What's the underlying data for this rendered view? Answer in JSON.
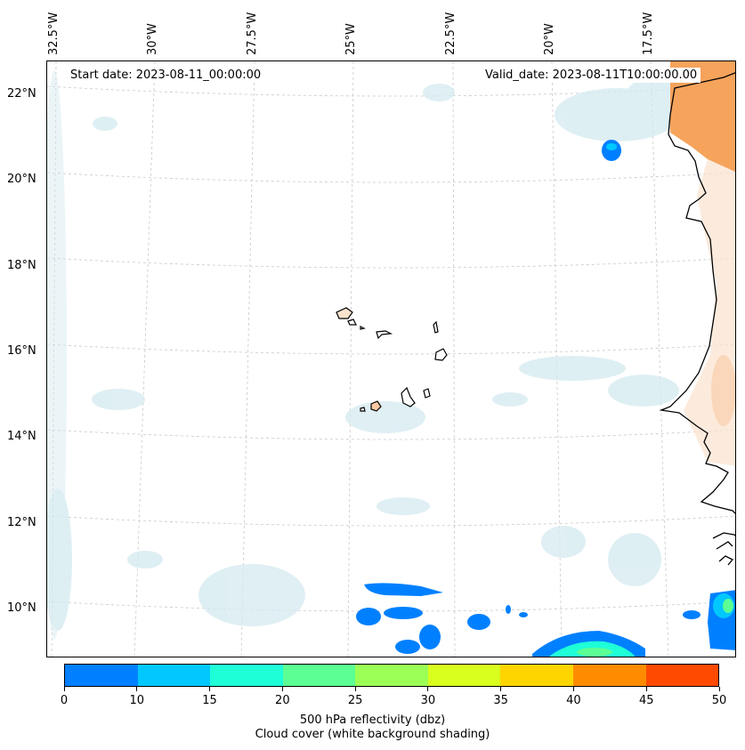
{
  "map": {
    "start_label": "Start date: 2023-08-11_00:00:00",
    "valid_label": "Valid_date: 2023-08-11T10:00:00.00",
    "lon_labels": [
      "32.5°W",
      "30°W",
      "27.5°W",
      "25°W",
      "22.5°W",
      "20°W",
      "17.5°W"
    ],
    "lat_labels": [
      "22°N",
      "20°N",
      "18°N",
      "16°N",
      "14°N",
      "12°N",
      "10°N"
    ]
  },
  "colorbar": {
    "ticks": [
      "0",
      "10",
      "15",
      "20",
      "25",
      "30",
      "35",
      "40",
      "45",
      "50"
    ],
    "colors": [
      "#0080ff",
      "#00c8ff",
      "#1effd8",
      "#5cff93",
      "#9cff55",
      "#d8ff1e",
      "#ffd500",
      "#ff8c00",
      "#ff4a00"
    ],
    "title_line1": "500 hPa reflectivity (dbz)",
    "title_line2": "Cloud cover (white background shading)"
  },
  "colors": {
    "cloud": "#d4eaf0",
    "land_heat": "#f6a35c",
    "land_light": "#fbe3cf",
    "coast": "#000000",
    "grid": "#c8c8c8"
  }
}
